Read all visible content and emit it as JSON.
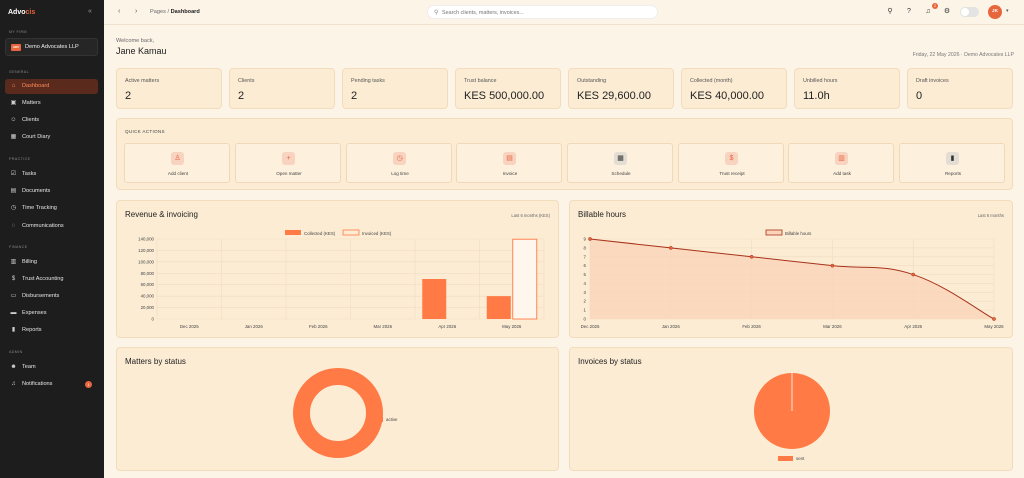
{
  "sidebar": {
    "brand_main": "Advo",
    "brand_accent": "cis",
    "collapse_icon": "«",
    "firm_section": "MY FIRM",
    "firm_logo": "ADV",
    "firm_name": "Demo Advocates LLP",
    "sections": {
      "general": "GENERAL",
      "practice": "PRACTICE",
      "finance": "FINANCE",
      "admin": "ADMIN"
    },
    "items": [
      {
        "label": "Dashboard",
        "icon": "home-icon"
      },
      {
        "label": "Matters",
        "icon": "briefcase-icon"
      },
      {
        "label": "Clients",
        "icon": "users-icon"
      },
      {
        "label": "Court Diary",
        "icon": "calendar-icon"
      },
      {
        "label": "Tasks",
        "icon": "checklist-icon"
      },
      {
        "label": "Documents",
        "icon": "document-icon"
      },
      {
        "label": "Time Tracking",
        "icon": "clock-icon"
      },
      {
        "label": "Communications",
        "icon": "chat-icon"
      },
      {
        "label": "Billing",
        "icon": "receipt-icon"
      },
      {
        "label": "Trust Accounting",
        "icon": "dollar-icon"
      },
      {
        "label": "Disbursements",
        "icon": "wallet-icon"
      },
      {
        "label": "Expenses",
        "icon": "card-icon"
      },
      {
        "label": "Reports",
        "icon": "chart-icon"
      },
      {
        "label": "Team",
        "icon": "user-icon"
      },
      {
        "label": "Notifications",
        "icon": "bell-icon"
      }
    ],
    "notifications_badge": "1"
  },
  "topbar": {
    "crumb_parent": "Pages",
    "crumb_sep": "/",
    "crumb_current": "Dashboard",
    "search_placeholder": "Search clients, matters, invoices...",
    "bell_badge": "2",
    "avatar_initials": "JK"
  },
  "header": {
    "welcome": "Welcome back,",
    "user_name": "Jane Kamau",
    "date_line": "Friday, 22 May 2026 · Demo Advocates LLP"
  },
  "stats": [
    {
      "label": "Active matters",
      "value": "2"
    },
    {
      "label": "Clients",
      "value": "2"
    },
    {
      "label": "Pending tasks",
      "value": "2"
    },
    {
      "label": "Trust balance",
      "value": "KES 500,000.00"
    },
    {
      "label": "Outstanding",
      "value": "KES 29,600.00"
    },
    {
      "label": "Collected (month)",
      "value": "KES 40,000.00"
    },
    {
      "label": "Unbilled hours",
      "value": "11.0h"
    },
    {
      "label": "Draft invoices",
      "value": "0"
    }
  ],
  "quick_actions": {
    "title": "QUICK ACTIONS",
    "items": [
      {
        "label": "Add client",
        "icon": "add-user-icon"
      },
      {
        "label": "Open matter",
        "icon": "plus-icon"
      },
      {
        "label": "Log time",
        "icon": "clock-icon"
      },
      {
        "label": "Invoice",
        "icon": "invoice-icon"
      },
      {
        "label": "Schedule",
        "icon": "calendar-icon"
      },
      {
        "label": "Trust receipt",
        "icon": "dollar-icon"
      },
      {
        "label": "Add task",
        "icon": "clipboard-icon"
      },
      {
        "label": "Reports",
        "icon": "bar-chart-icon"
      }
    ]
  },
  "colors": {
    "accent": "#e8663d",
    "bar_fill": "#ff7a45",
    "line": "#a8321a",
    "area": "#fbd3b8"
  },
  "chart_data": [
    {
      "type": "bar",
      "title": "Revenue & invoicing",
      "subtitle": "Last 6 months (KES)",
      "categories": [
        "Dec 2025",
        "Jan 2026",
        "Feb 2026",
        "Mar 2026",
        "Apr 2026",
        "May 2026"
      ],
      "series": [
        {
          "name": "Collected (KES)",
          "values": [
            0,
            0,
            0,
            0,
            70000,
            40000
          ]
        },
        {
          "name": "Invoiced (KES)",
          "values": [
            0,
            0,
            0,
            0,
            0,
            139600
          ]
        }
      ],
      "yticks": [
        "140,000",
        "120,000",
        "100,000",
        "80,000",
        "60,000",
        "40,000",
        "20,000",
        "0"
      ],
      "ylim": [
        0,
        140000
      ],
      "grid": true,
      "legend": "top-center"
    },
    {
      "type": "area",
      "title": "Billable hours",
      "subtitle": "Last 6 months",
      "categories": [
        "Dec 2025",
        "Jan 2026",
        "Feb 2026",
        "Mar 2026",
        "Apr 2026",
        "May 2026"
      ],
      "series": [
        {
          "name": "Billable hours",
          "values": [
            9,
            8,
            7,
            6,
            5,
            0
          ]
        }
      ],
      "yticks": [
        "9",
        "8",
        "7",
        "6",
        "5",
        "4",
        "3",
        "2",
        "1",
        "0"
      ],
      "ylim": [
        0,
        9
      ],
      "grid": true,
      "legend": "top-center"
    },
    {
      "type": "pie",
      "title": "Matters by status",
      "labels": [
        "active"
      ],
      "values": [
        2
      ],
      "donut": true,
      "legend": "right"
    },
    {
      "type": "pie",
      "title": "Invoices by status",
      "labels": [
        "sent"
      ],
      "values": [
        1
      ],
      "donut": false,
      "legend": "bottom"
    }
  ]
}
